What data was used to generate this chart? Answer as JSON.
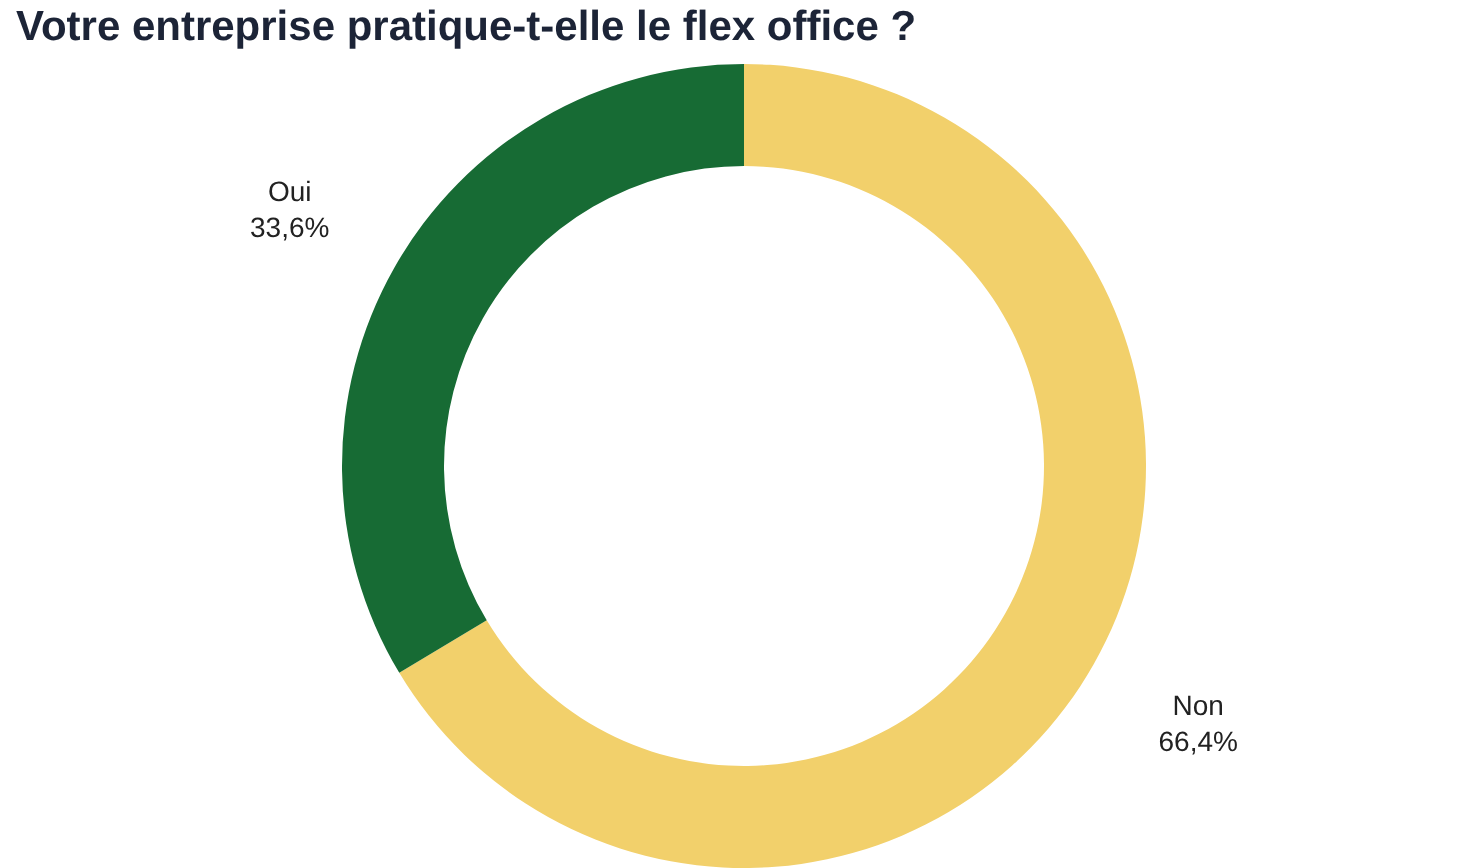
{
  "chart_data": {
    "type": "donut",
    "title": "Votre entreprise pratique-t-elle le flex office ?",
    "categories": [
      "Non",
      "Oui"
    ],
    "values": [
      66.4,
      33.6
    ],
    "colors": [
      "#f2d06b",
      "#176b34"
    ],
    "value_labels": [
      "66,4%",
      "33,6%"
    ]
  }
}
